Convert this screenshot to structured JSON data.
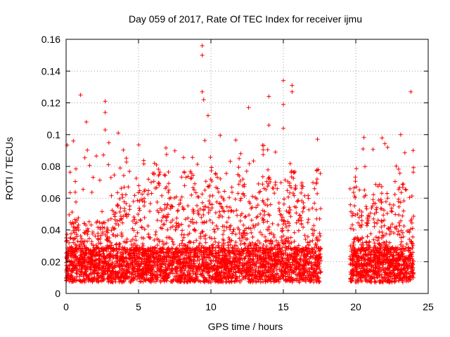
{
  "chart_data": {
    "type": "scatter",
    "title": "Day 059 of 2017, Rate Of TEC Index for receiver ijmu",
    "xlabel": "GPS time / hours",
    "ylabel": "ROTI / TECUs",
    "xlim": [
      0,
      25
    ],
    "ylim": [
      0,
      0.16
    ],
    "xticks": [
      0,
      5,
      10,
      15,
      20,
      25
    ],
    "yticks": [
      0,
      0.02,
      0.04,
      0.06,
      0.08,
      0.1,
      0.12,
      0.14,
      0.16
    ],
    "xtick_labels": [
      "0",
      "5",
      "10",
      "15",
      "20",
      "25"
    ],
    "ytick_labels": [
      "0",
      "0.02",
      "0.04",
      "0.06",
      "0.08",
      "0.1",
      "0.12",
      "0.14",
      "0.16"
    ],
    "grid": true,
    "marker": "plus",
    "color": "#ff0000",
    "gap": [
      17.6,
      19.6
    ],
    "notable_points": [
      {
        "x": 9.4,
        "y": 0.156
      },
      {
        "x": 9.4,
        "y": 0.15
      },
      {
        "x": 15.0,
        "y": 0.134
      },
      {
        "x": 15.6,
        "y": 0.131
      },
      {
        "x": 15.6,
        "y": 0.127
      },
      {
        "x": 23.8,
        "y": 0.127
      },
      {
        "x": 9.4,
        "y": 0.127
      },
      {
        "x": 1.0,
        "y": 0.125
      },
      {
        "x": 14.0,
        "y": 0.124
      },
      {
        "x": 9.5,
        "y": 0.122
      },
      {
        "x": 2.7,
        "y": 0.121
      },
      {
        "x": 15.0,
        "y": 0.119
      },
      {
        "x": 12.6,
        "y": 0.117
      },
      {
        "x": 2.7,
        "y": 0.114
      },
      {
        "x": 9.8,
        "y": 0.112
      },
      {
        "x": 1.4,
        "y": 0.108
      },
      {
        "x": 14.0,
        "y": 0.106
      },
      {
        "x": 15.0,
        "y": 0.104
      },
      {
        "x": 2.7,
        "y": 0.103
      },
      {
        "x": 3.6,
        "y": 0.101
      },
      {
        "x": 23.1,
        "y": 0.1
      },
      {
        "x": 0.5,
        "y": 0.096
      },
      {
        "x": 20.5,
        "y": 0.091
      },
      {
        "x": 22.2,
        "y": 0.092
      }
    ]
  }
}
